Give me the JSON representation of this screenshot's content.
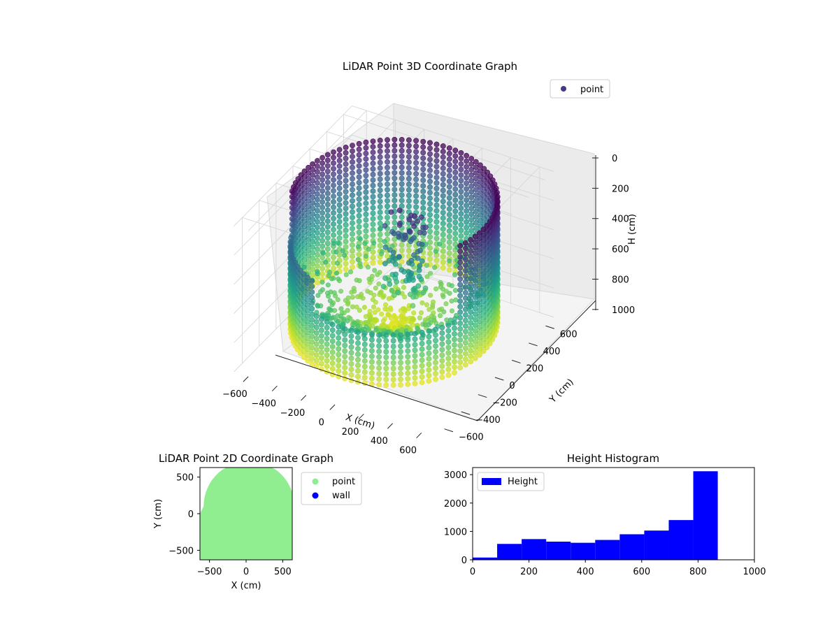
{
  "chart_data": [
    {
      "type": "scatter",
      "projection": "3d",
      "title": "LiDAR Point 3D Coordinate Graph",
      "xlabel": "X (cm)",
      "ylabel": "Y (cm)",
      "zlabel": "H (cm)",
      "xlim": [
        -700,
        700
      ],
      "ylim": [
        -700,
        700
      ],
      "zlim": [
        1000,
        0
      ],
      "x_ticks": [
        "−600",
        "−400",
        "−200",
        "0",
        "200",
        "400",
        "600"
      ],
      "y_ticks": [
        "−600",
        "−400",
        "−200",
        "0",
        "200",
        "400",
        "600"
      ],
      "z_ticks": [
        "0",
        "200",
        "400",
        "600",
        "800",
        "1000"
      ],
      "colormap": "viridis",
      "legend": {
        "label": "point",
        "placement": "top-right",
        "color": "#443983"
      },
      "grid": true,
      "shape": "cylindrical wall of points, radius ~620 cm, height 0 to ~870 cm, open toward the viewer on the near side, with scattered interior points"
    },
    {
      "type": "scatter",
      "title": "LiDAR Point 2D Coordinate Graph",
      "xlabel": "X (cm)",
      "ylabel": "Y (cm)",
      "xlim": [
        -630,
        630
      ],
      "ylim": [
        -630,
        630
      ],
      "x_ticks": [
        "−500",
        "0",
        "500"
      ],
      "y_ticks": [
        "−500",
        "0",
        "500"
      ],
      "series": [
        {
          "name": "point",
          "color": "#90ee90"
        },
        {
          "name": "wall",
          "color": "#0000ff"
        }
      ],
      "legend_placement": "outside-right"
    },
    {
      "type": "bar",
      "title": "Height Histogram",
      "bin_edges": [
        0,
        87,
        174,
        261,
        348,
        435,
        522,
        609,
        696,
        783,
        870
      ],
      "values": [
        80,
        560,
        730,
        640,
        600,
        700,
        900,
        1030,
        1400,
        3120
      ],
      "xlim": [
        0,
        1000
      ],
      "ylim": [
        0,
        3250
      ],
      "x_ticks": [
        "0",
        "200",
        "400",
        "600",
        "800",
        "1000"
      ],
      "y_ticks": [
        "0",
        "1000",
        "2000",
        "3000"
      ],
      "series_name": "Height",
      "color": "#0000ff",
      "legend_placement": "top-left"
    }
  ]
}
